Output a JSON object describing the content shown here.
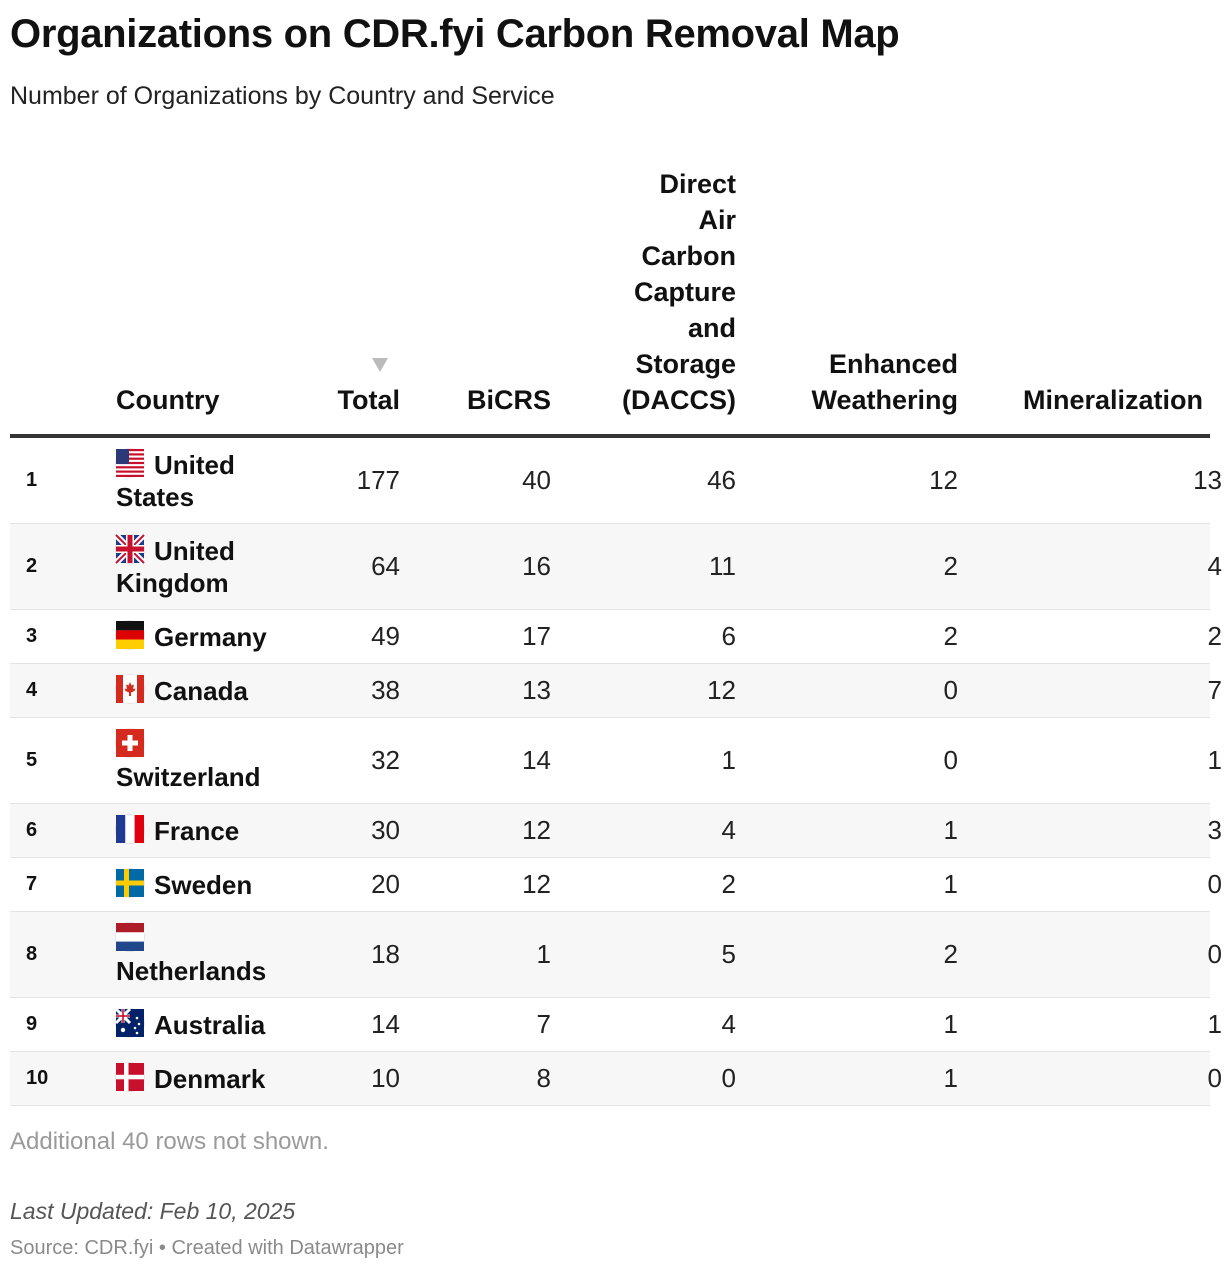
{
  "title": "Organizations on CDR.fyi Carbon Removal Map",
  "subtitle": "Number of Organizations by Country and Service",
  "footer": {
    "note": "Additional 40 rows not shown.",
    "updated": "Last Updated: Feb 10, 2025",
    "source": "Source: CDR.fyi • Created with Datawrapper"
  },
  "colors": {
    "header_rule": "#333333",
    "alt_row": "#f7f7f7",
    "sort_icon": "#bbbbbb"
  },
  "icons": {
    "sort": "sort-descending-icon"
  },
  "chart_data": {
    "type": "table",
    "columns": [
      {
        "key": "country",
        "label": "Country"
      },
      {
        "key": "total",
        "label": "Total"
      },
      {
        "key": "bicrs",
        "label": "BiCRS"
      },
      {
        "key": "daccs",
        "label": "Direct\nAir\nCarbon\nCapture\nand\nStorage\n(DACCS)"
      },
      {
        "key": "ew",
        "label": "Enhanced\nWeathering"
      },
      {
        "key": "min",
        "label": "Mineralization"
      }
    ],
    "sorted_by": "total",
    "rows": [
      {
        "rank": "1",
        "country": "United States",
        "flag": "us-flag-icon",
        "total": 177,
        "bicrs": 40,
        "daccs": 46,
        "ew": 12,
        "min": 13
      },
      {
        "rank": "2",
        "country": "United Kingdom",
        "flag": "uk-flag-icon",
        "total": 64,
        "bicrs": 16,
        "daccs": 11,
        "ew": 2,
        "min": 4
      },
      {
        "rank": "3",
        "country": "Germany",
        "flag": "germany-flag-icon",
        "total": 49,
        "bicrs": 17,
        "daccs": 6,
        "ew": 2,
        "min": 2
      },
      {
        "rank": "4",
        "country": "Canada",
        "flag": "canada-flag-icon",
        "total": 38,
        "bicrs": 13,
        "daccs": 12,
        "ew": 0,
        "min": 7
      },
      {
        "rank": "5",
        "country": "Switzerland",
        "flag": "switzerland-flag-icon",
        "total": 32,
        "bicrs": 14,
        "daccs": 1,
        "ew": 0,
        "min": 1
      },
      {
        "rank": "6",
        "country": "France",
        "flag": "france-flag-icon",
        "total": 30,
        "bicrs": 12,
        "daccs": 4,
        "ew": 1,
        "min": 3
      },
      {
        "rank": "7",
        "country": "Sweden",
        "flag": "sweden-flag-icon",
        "total": 20,
        "bicrs": 12,
        "daccs": 2,
        "ew": 1,
        "min": 0
      },
      {
        "rank": "8",
        "country": "Netherlands",
        "flag": "netherlands-flag-icon",
        "total": 18,
        "bicrs": 1,
        "daccs": 5,
        "ew": 2,
        "min": 0
      },
      {
        "rank": "9",
        "country": "Australia",
        "flag": "australia-flag-icon",
        "total": 14,
        "bicrs": 7,
        "daccs": 4,
        "ew": 1,
        "min": 1
      },
      {
        "rank": "10",
        "country": "Denmark",
        "flag": "denmark-flag-icon",
        "total": 10,
        "bicrs": 8,
        "daccs": 0,
        "ew": 1,
        "min": 0
      }
    ]
  }
}
